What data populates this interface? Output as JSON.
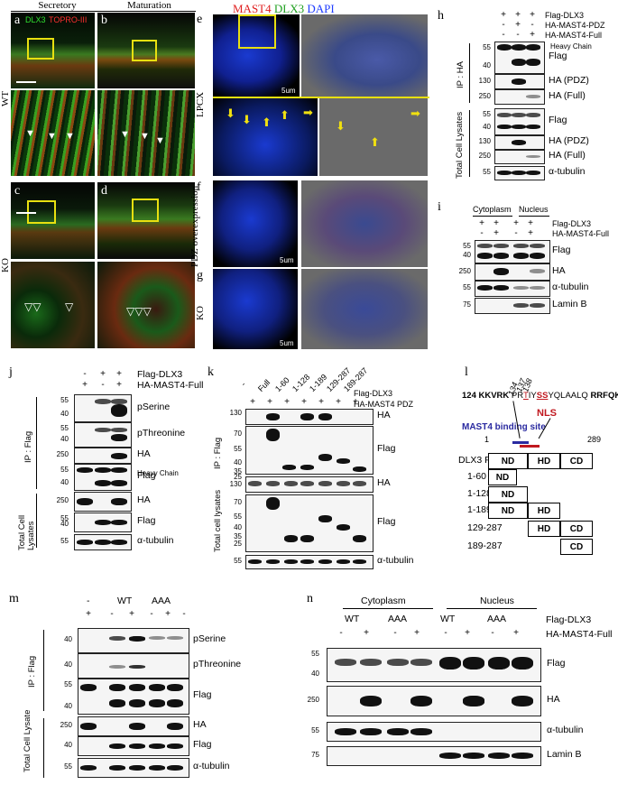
{
  "panels": {
    "a": "a",
    "b": "b",
    "c": "c",
    "d": "d",
    "e": "e",
    "f": "f",
    "g": "g",
    "h": "h",
    "i": "i",
    "j": "j",
    "k": "k",
    "l": "l",
    "m": "m",
    "n": "n"
  },
  "col_headers": {
    "secretory": "Secretory",
    "maturation": "Maturation"
  },
  "stain_legend": {
    "dlx3": "DLX3",
    "topro": "TOPRO-III"
  },
  "row_labels": {
    "wt": "WT",
    "ko": "KO"
  },
  "e_title": {
    "mast4": "MAST4",
    "dlx3": "DLX3",
    "dapi": "DAPI"
  },
  "efg_side": {
    "lpcx": "LPCX",
    "pdz": "PDZ overexpression",
    "ko": "KO"
  },
  "scale": "5um",
  "h": {
    "rows": [
      "Flag-DLX3",
      "HA-MAST4-PDZ",
      "HA-MAST4-Full"
    ],
    "signs": [
      [
        "+",
        "+",
        "+"
      ],
      [
        "-",
        "+",
        "-"
      ],
      [
        "-",
        "-",
        "+"
      ]
    ],
    "ip": "IP : HA",
    "tcl": "Total Cell Lysates",
    "heavy": "Heavy Chain",
    "blots1": [
      {
        "mw": [
          "55",
          "40"
        ],
        "label": "Flag"
      },
      {
        "mw": [
          "130"
        ],
        "label": "HA (PDZ)"
      },
      {
        "mw": [
          "250"
        ],
        "label": "HA (Full)"
      }
    ],
    "blots2": [
      {
        "mw": [
          "55",
          "40"
        ],
        "label": "Flag"
      },
      {
        "mw": [
          "130"
        ],
        "label": "HA (PDZ)"
      },
      {
        "mw": [
          "250"
        ],
        "label": "HA (Full)"
      },
      {
        "mw": [
          "55"
        ],
        "label": "α-tubulin"
      }
    ]
  },
  "i": {
    "cyto": "Cytoplasm",
    "nuc": "Nucleus",
    "rows": [
      "Flag-DLX3",
      "HA-MAST4-Full"
    ],
    "signs": [
      [
        "+",
        "+",
        "+",
        "+"
      ],
      [
        "-",
        "+",
        "-",
        "+"
      ]
    ],
    "blots": [
      {
        "mw": [
          "55",
          "40"
        ],
        "label": "Flag"
      },
      {
        "mw": [
          "250"
        ],
        "label": "HA"
      },
      {
        "mw": [
          "55"
        ],
        "label": "α-tubulin"
      },
      {
        "mw": [
          "75"
        ],
        "label": "Lamin B"
      }
    ]
  },
  "j": {
    "rows": [
      "Flag-DLX3",
      "HA-MAST4-Full"
    ],
    "signs": [
      [
        "-",
        "+",
        "+"
      ],
      [
        "+",
        "-",
        "+"
      ]
    ],
    "ip": "IP : Flag",
    "tcl": "Total Cell Lysates",
    "heavy": "Heavy Chain",
    "blots1": [
      {
        "mw": [
          "55",
          "40"
        ],
        "label": "pSerine"
      },
      {
        "mw": [
          "55",
          "40"
        ],
        "label": "pThreonine"
      },
      {
        "mw": [
          "250"
        ],
        "label": "HA"
      },
      {
        "mw": [
          "55",
          "40"
        ],
        "label": "Flag"
      }
    ],
    "blots2": [
      {
        "mw": [
          "250"
        ],
        "label": "HA"
      },
      {
        "mw": [
          "55",
          "40"
        ],
        "label": "Flag"
      },
      {
        "mw": [
          "55"
        ],
        "label": "α-tubulin"
      }
    ]
  },
  "k": {
    "cols": [
      "-",
      "Full",
      "1-60",
      "1-128",
      "1-189",
      "129-287",
      "189-287"
    ],
    "rows": [
      "Flag-DLX3",
      "HA-MAST4 PDZ"
    ],
    "ip": "IP : Flag",
    "tcl": "Total cell lysates",
    "mw1": [
      "130",
      "70",
      "55",
      "40",
      "35",
      "25"
    ],
    "mw2": [
      "130",
      "70",
      "55",
      "40",
      "35",
      "25",
      "55"
    ],
    "labels": [
      "HA",
      "Flag",
      "HA",
      "Flag",
      "α-tubulin"
    ]
  },
  "l": {
    "seq_pre": "124 KKVRK",
    "seq_pr": "PR",
    "seq_t": "T",
    "seq_i": "I",
    "seq_y": "Y",
    "seq_ss": "SS",
    "seq_mid": "YQLAALQ",
    "seq_post": "RRFQK 150",
    "n134": "134",
    "n137": "137",
    "n138": "138",
    "nls": "NLS",
    "mbs": "MAST4 binding site",
    "start": "1",
    "end": "289",
    "constructs": [
      "DLX3 Full",
      "1-60",
      "1-128",
      "1-189",
      "129-287",
      "189-287"
    ],
    "nd": "ND",
    "hd": "HD",
    "cd": "CD"
  },
  "m": {
    "groups": [
      "-",
      "WT",
      "AAA"
    ],
    "signs": [
      "+",
      "-",
      "+",
      "-",
      "+",
      "-",
      "+"
    ],
    "ip": "IP : Flag",
    "tcl": "Total Cell Lysate",
    "blots1": [
      {
        "mw": [
          "40"
        ],
        "label": "pSerine"
      },
      {
        "mw": [
          "40"
        ],
        "label": "pThreonine"
      },
      {
        "mw": [
          "55",
          "40"
        ],
        "label": "Flag"
      }
    ],
    "blots2": [
      {
        "mw": [
          "250"
        ],
        "label": "HA"
      },
      {
        "mw": [
          "40"
        ],
        "label": "Flag"
      },
      {
        "mw": [
          "55"
        ],
        "label": "α-tubulin"
      }
    ]
  },
  "n": {
    "cyto": "Cytoplasm",
    "nuc": "Nucleus",
    "groups": [
      "WT",
      "AAA",
      "WT",
      "AAA"
    ],
    "rows": [
      "Flag-DLX3",
      "HA-MAST4-Full"
    ],
    "signs": [
      "-",
      "+",
      "-",
      "+",
      "-",
      "+",
      "-",
      "+"
    ],
    "blots": [
      {
        "mw": [
          "55",
          "40"
        ],
        "label": "Flag"
      },
      {
        "mw": [
          "250"
        ],
        "label": "HA"
      },
      {
        "mw": [
          "55"
        ],
        "label": "α-tubulin"
      },
      {
        "mw": [
          "75"
        ],
        "label": "Lamin B"
      }
    ]
  },
  "colors": {
    "green": "#2fbf2f",
    "red": "#e02020",
    "blue": "#1e3cff",
    "nls": "#c0181f",
    "mbs": "#2a2aa0"
  }
}
